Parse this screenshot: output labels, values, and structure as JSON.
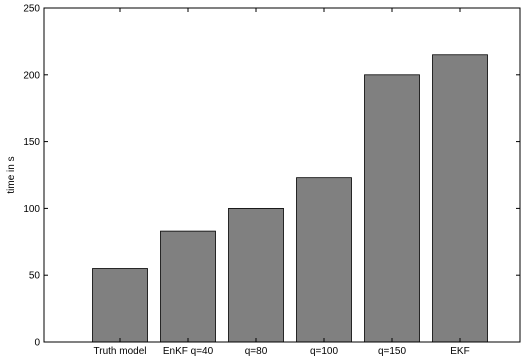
{
  "chart_data": {
    "type": "bar",
    "title": "",
    "xlabel": "",
    "ylabel": "time in s",
    "categories": [
      "Truth model",
      "EnKF q=40",
      "q=80",
      "q=100",
      "q=150",
      "EKF"
    ],
    "values": [
      55,
      83,
      100,
      123,
      200,
      215
    ],
    "ylim": [
      0,
      250
    ],
    "yticks": [
      0,
      50,
      100,
      150,
      200,
      250
    ],
    "grid": false,
    "legend": "none",
    "bar_color": "#808080",
    "edge_color": "#000000"
  }
}
